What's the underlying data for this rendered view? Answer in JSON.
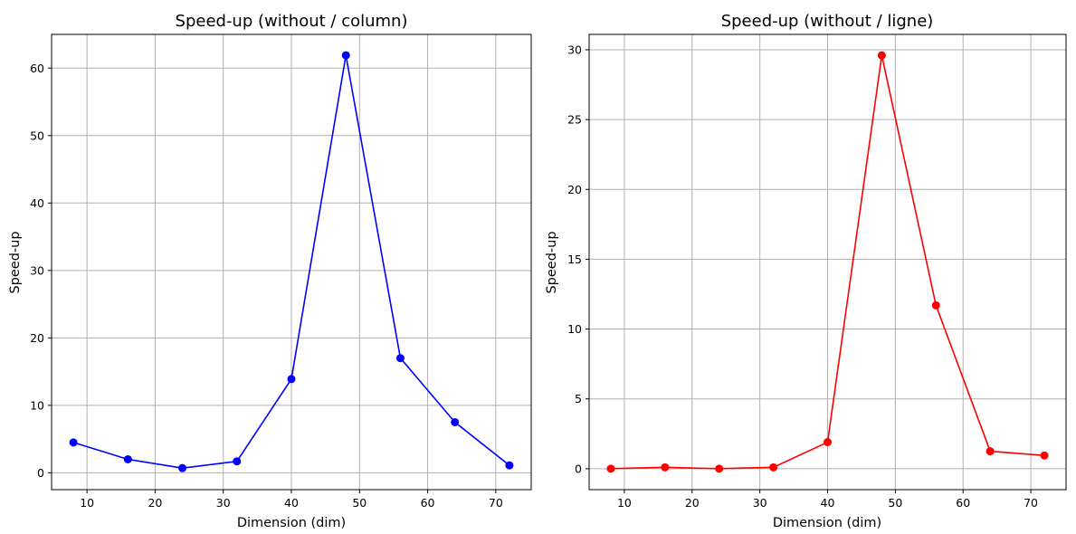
{
  "chart_data": [
    {
      "type": "line",
      "title": "Speed-up (without / column)",
      "xlabel": "Dimension (dim)",
      "ylabel": "Speed-up",
      "x": [
        8,
        16,
        24,
        32,
        40,
        48,
        56,
        64,
        72
      ],
      "series": [
        {
          "values": [
            4.5,
            2.0,
            0.7,
            1.7,
            13.9,
            61.9,
            17.0,
            7.5,
            1.1
          ],
          "color": "#0000ff",
          "marker": "circle"
        }
      ],
      "xlim": [
        4.8,
        75.2
      ],
      "ylim": [
        -2.5,
        65
      ],
      "xticks": [
        10,
        20,
        30,
        40,
        50,
        60,
        70
      ],
      "yticks": [
        0,
        10,
        20,
        30,
        40,
        50,
        60
      ],
      "grid": true
    },
    {
      "type": "line",
      "title": "Speed-up (without / ligne)",
      "xlabel": "Dimension (dim)",
      "ylabel": "Speed-up",
      "x": [
        8,
        16,
        24,
        32,
        40,
        48,
        56,
        64,
        72
      ],
      "series": [
        {
          "values": [
            0.0,
            0.1,
            0.0,
            0.1,
            1.9,
            29.6,
            11.7,
            1.25,
            0.95
          ],
          "color": "#ff0000",
          "marker": "circle"
        }
      ],
      "xlim": [
        4.8,
        75.2
      ],
      "ylim": [
        -1.5,
        31.1
      ],
      "xticks": [
        10,
        20,
        30,
        40,
        50,
        60,
        70
      ],
      "yticks": [
        0,
        5,
        10,
        15,
        20,
        25,
        30
      ],
      "grid": true
    }
  ]
}
